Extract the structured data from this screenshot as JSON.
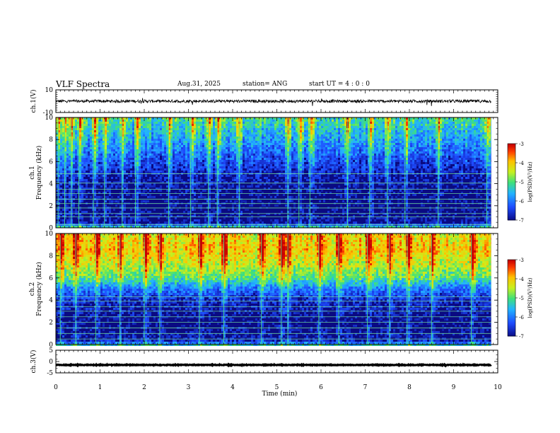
{
  "header": {
    "title": "VLF Spectra",
    "date": "Aug.31, 2025",
    "station": "station= ANG",
    "start": "start UT = 4 : 0 : 0"
  },
  "chart_data": [
    {
      "id": "ch1-waveform",
      "type": "line",
      "ylabel": "ch.1(V)",
      "ylim": [
        -10,
        10
      ],
      "yticks": [
        "10",
        "-10"
      ],
      "xlim": [
        0,
        10
      ],
      "series": [
        {
          "baseline": 0,
          "noise_amplitude": 1.3
        }
      ]
    },
    {
      "id": "ch1-spectrogram",
      "type": "heatmap",
      "ylabel": "ch.1\nFrequency (kHz)",
      "ylim": [
        0,
        10
      ],
      "yticks": [
        "0",
        "2",
        "4",
        "6",
        "8",
        "10"
      ],
      "xlim": [
        0,
        10
      ],
      "data_end_min": 9.85,
      "colorbar": {
        "label": "log(PSD)(V²/Hz)",
        "ticks": [
          "-3",
          "-4",
          "-5",
          "-6",
          "-7"
        ],
        "range": [
          -7,
          -3
        ]
      },
      "profile": [
        {
          "f": 0.0,
          "v": -5.0
        },
        {
          "f": 0.4,
          "v": -6.9
        },
        {
          "f": 2.0,
          "v": -7.0
        },
        {
          "f": 4.5,
          "v": -6.8
        },
        {
          "f": 5.2,
          "v": -6.6
        },
        {
          "f": 6.5,
          "v": -6.2
        },
        {
          "f": 8.0,
          "v": -5.7
        },
        {
          "f": 10.0,
          "v": -5.1
        }
      ],
      "lines_khz": [
        0.3,
        1.0,
        1.3,
        1.8,
        2.2,
        2.6,
        3.1,
        3.5,
        4.05,
        4.9
      ],
      "bursts_min": [
        0.05,
        0.2,
        0.35,
        0.52,
        0.85,
        1.1,
        1.5,
        1.8,
        2.55,
        3.05,
        3.45,
        3.65,
        4.15,
        5.25,
        5.5,
        5.75,
        6.6,
        7.1,
        7.5,
        7.9,
        8.65,
        9.75
      ]
    },
    {
      "id": "ch2-spectrogram",
      "type": "heatmap",
      "ylabel": "ch.2\nFrequency (kHz)",
      "ylim": [
        0,
        10
      ],
      "yticks": [
        "0",
        "2",
        "4",
        "6",
        "8",
        "10"
      ],
      "xlim": [
        0,
        10
      ],
      "data_end_min": 9.85,
      "colorbar": {
        "label": "log(PSD)(V²/Hz)",
        "ticks": [
          "-3",
          "-4",
          "-5",
          "-6",
          "-7"
        ],
        "range": [
          -7,
          -3
        ]
      },
      "profile": [
        {
          "f": 0.0,
          "v": -5.5
        },
        {
          "f": 0.4,
          "v": -6.8
        },
        {
          "f": 2.0,
          "v": -7.0
        },
        {
          "f": 4.0,
          "v": -6.6
        },
        {
          "f": 5.0,
          "v": -6.0
        },
        {
          "f": 6.0,
          "v": -5.0
        },
        {
          "f": 7.0,
          "v": -4.5
        },
        {
          "f": 8.5,
          "v": -4.0
        },
        {
          "f": 10.0,
          "v": -4.2
        }
      ],
      "lines_khz": [
        0.5,
        1.0,
        1.5,
        2.0,
        2.5,
        3.0,
        3.4,
        3.9,
        4.3
      ],
      "bursts_min": [
        0.1,
        0.45,
        0.9,
        1.45,
        2.0,
        2.35,
        3.25,
        3.8,
        4.65,
        5.1,
        5.25,
        5.95,
        6.4,
        7.05,
        7.55,
        7.95,
        8.5,
        9.4
      ]
    },
    {
      "id": "ch3-waveform",
      "type": "line",
      "ylabel": "ch.3(V)",
      "ylim": [
        -5,
        5
      ],
      "yticks": [
        "5",
        "0",
        "-5"
      ],
      "xlim": [
        0,
        10
      ],
      "series": [
        {
          "baseline": -1.5,
          "noise_amplitude": 0.15
        }
      ]
    }
  ],
  "x_axis": {
    "label": "Time (min)",
    "ticks": [
      "0",
      "1",
      "2",
      "3",
      "4",
      "5",
      "6",
      "7",
      "8",
      "9",
      "10"
    ]
  }
}
